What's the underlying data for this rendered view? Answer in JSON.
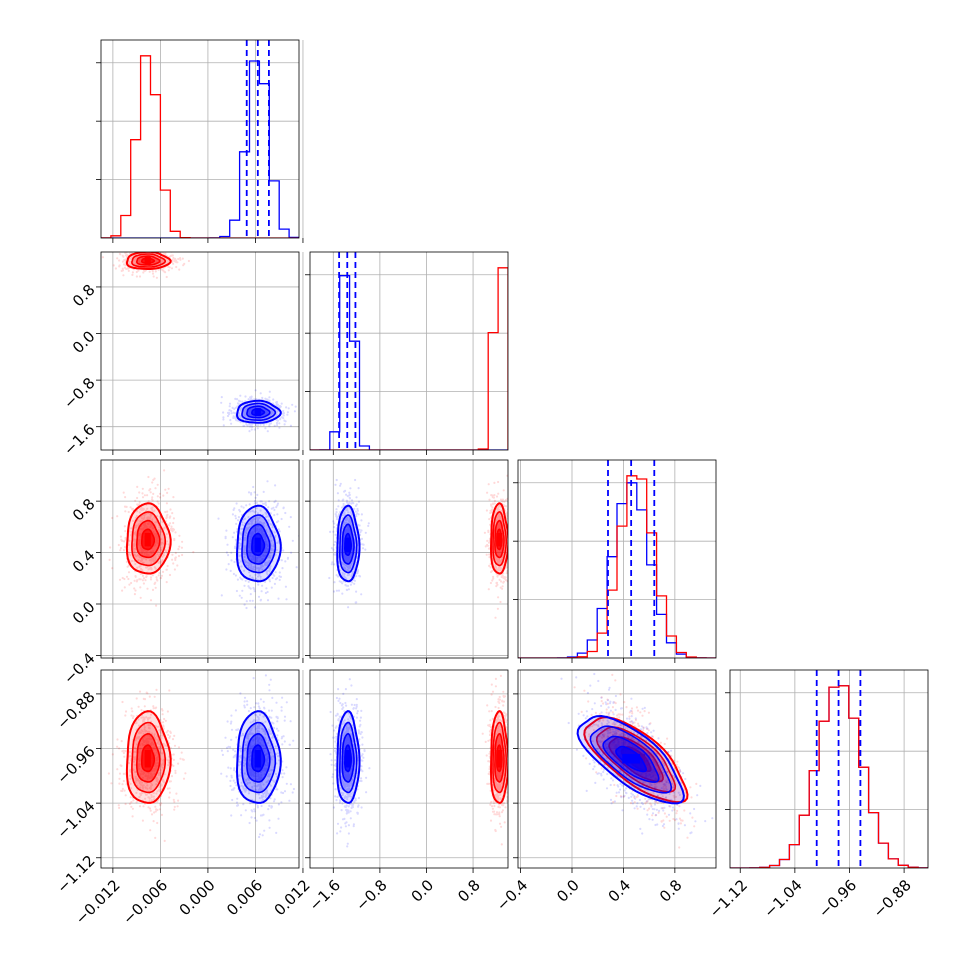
{
  "chart_data": {
    "type": "corner",
    "grid": true,
    "colors": {
      "series_a": "#ff0000",
      "series_b": "#0000ff"
    },
    "parameters": [
      {
        "range": [
          -0.0135,
          0.0115
        ],
        "ticks": [
          -0.012,
          -0.006,
          0.0,
          0.006,
          0.012
        ],
        "tick_labels": [
          "−0.012",
          "−0.006",
          "0.000",
          "0.006",
          "0.012"
        ]
      },
      {
        "range": [
          -2.0,
          1.4
        ],
        "ticks": [
          -1.6,
          -0.8,
          0.0,
          0.8
        ],
        "tick_labels": [
          "−1.6",
          "−0.8",
          "0.0",
          "0.8"
        ]
      },
      {
        "range": [
          -0.42,
          1.12
        ],
        "ticks": [
          -0.4,
          0.0,
          0.4,
          0.8
        ],
        "tick_labels": [
          "−0.4",
          "0.0",
          "0.4",
          "0.8"
        ]
      },
      {
        "range": [
          -1.135,
          -0.845
        ],
        "ticks": [
          -1.12,
          -1.04,
          -0.96,
          -0.88
        ],
        "tick_labels": [
          "−1.12",
          "−1.04",
          "−0.96",
          "−0.88"
        ]
      }
    ],
    "series": [
      {
        "color": "#ff0000",
        "centers": [
          -0.0076,
          1.25,
          0.5,
          -0.975
        ],
        "sigmas": [
          0.0013,
          0.07,
          0.13,
          0.032
        ],
        "corr_23": -0.6
      },
      {
        "color": "#0000ff",
        "centers": [
          0.0063,
          -1.35,
          0.46,
          -0.975
        ],
        "sigmas": [
          0.0013,
          0.09,
          0.14,
          0.032
        ],
        "corr_23": -0.6
      }
    ],
    "quantile_lines": {
      "color": "#0000ff",
      "values": [
        [
          0.0049,
          0.0063,
          0.0077
        ],
        [
          -1.5,
          -1.36,
          -1.22
        ],
        [
          0.28,
          0.46,
          0.64
        ],
        [
          -1.008,
          -0.976,
          -0.944
        ]
      ]
    }
  }
}
